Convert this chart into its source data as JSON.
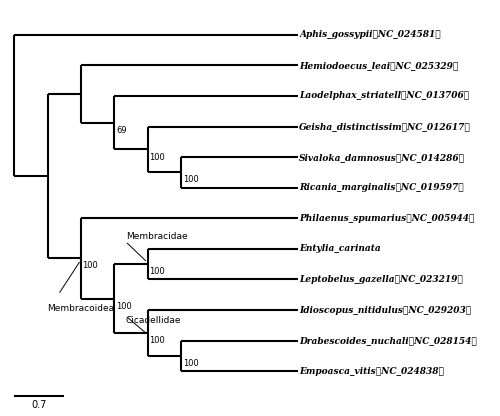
{
  "taxa": [
    {
      "name": "Aphis_gossypii",
      "acc": "（NC_024581）",
      "y": 12
    },
    {
      "name": "Hemiodoecus_leai",
      "acc": "（NC_025329）",
      "y": 11
    },
    {
      "name": "Laodelphax_striatell",
      "acc": "（NC_013706）",
      "y": 10
    },
    {
      "name": "Geisha_distinctissim",
      "acc": "（NC_012617）",
      "y": 9
    },
    {
      "name": "Sivaloka_damnosus",
      "acc": "（NC_014286）",
      "y": 8
    },
    {
      "name": "Ricania_marginalis",
      "acc": "（NC_019597）",
      "y": 7
    },
    {
      "name": "Philaenus_spumarius",
      "acc": "（NC_005944）",
      "y": 6
    },
    {
      "name": "Entylia_carinata",
      "acc": "",
      "y": 5
    },
    {
      "name": "Leptobelus_gazella",
      "acc": "（NC_023219）",
      "y": 4
    },
    {
      "name": "Idioscopus_nitidulus",
      "acc": "（NC_029203）",
      "y": 3
    },
    {
      "name": "Drabescoides_nuchali",
      "acc": "（NC_028154）",
      "y": 2
    },
    {
      "name": "Empoasca_vitis",
      "acc": "（NC_024838）",
      "y": 1
    }
  ],
  "lw": 1.5,
  "label_fontsize": 6.5,
  "bootstrap_fontsize": 6.0,
  "clade_fontsize": 6.5,
  "scale_label": "0.7",
  "background": "white"
}
